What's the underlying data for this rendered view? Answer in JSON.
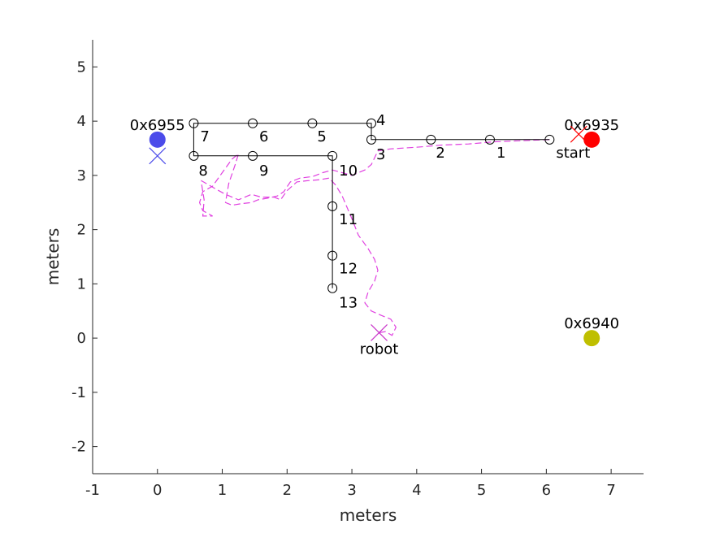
{
  "chart_data": {
    "type": "scatter",
    "xlabel": "meters",
    "ylabel": "meters",
    "xlim": [
      -1,
      7.5
    ],
    "ylim": [
      -2.5,
      5.5
    ],
    "xticks": [
      -1,
      0,
      1,
      2,
      3,
      4,
      5,
      6,
      7
    ],
    "yticks": [
      -2,
      -1,
      0,
      1,
      2,
      3,
      4,
      5
    ],
    "grid": false,
    "path": {
      "color": "#000000",
      "points": [
        [
          6.05,
          3.66
        ],
        [
          5.13,
          3.66
        ],
        [
          4.22,
          3.66
        ],
        [
          3.3,
          3.66
        ],
        [
          3.3,
          3.96
        ],
        [
          2.39,
          3.96
        ],
        [
          1.47,
          3.96
        ],
        [
          0.56,
          3.96
        ],
        [
          0.56,
          3.36
        ],
        [
          1.47,
          3.36
        ],
        [
          2.7,
          3.36
        ],
        [
          2.7,
          2.43
        ],
        [
          2.7,
          1.52
        ],
        [
          2.7,
          0.92
        ]
      ]
    },
    "waypoints": [
      {
        "label": "1",
        "x": 5.13,
        "y": 3.66
      },
      {
        "label": "2",
        "x": 4.22,
        "y": 3.66
      },
      {
        "label": "3",
        "x": 3.3,
        "y": 3.66
      },
      {
        "label": "4",
        "x": 3.3,
        "y": 3.96
      },
      {
        "label": "5",
        "x": 2.39,
        "y": 3.96
      },
      {
        "label": "6",
        "x": 1.47,
        "y": 3.96
      },
      {
        "label": "7",
        "x": 0.56,
        "y": 3.96
      },
      {
        "label": "8",
        "x": 0.56,
        "y": 3.36
      },
      {
        "label": "9",
        "x": 1.47,
        "y": 3.36
      },
      {
        "label": "10",
        "x": 2.7,
        "y": 3.36
      },
      {
        "label": "11",
        "x": 2.7,
        "y": 2.43
      },
      {
        "label": "12",
        "x": 2.7,
        "y": 1.52
      },
      {
        "label": "13",
        "x": 2.7,
        "y": 0.92
      }
    ],
    "start": {
      "label": "start",
      "x": 6.05,
      "y": 3.66
    },
    "anchors": [
      {
        "label": "0x6955",
        "x": 0.0,
        "y": 3.66,
        "color": "#4b4bea"
      },
      {
        "label": "0x6935",
        "x": 6.7,
        "y": 3.66,
        "color": "#ff0000"
      },
      {
        "label": "0x6940",
        "x": 6.7,
        "y": 0.0,
        "color": "#bfbf00"
      }
    ],
    "anchor_estimates": [
      {
        "x": 0.0,
        "y": 3.36,
        "color": "#4b4bea"
      },
      {
        "x": 6.5,
        "y": 3.76,
        "color": "#ff0000"
      }
    ],
    "robot": {
      "label": "robot",
      "x": 3.42,
      "y": 0.1,
      "color": "#c832c8"
    },
    "trajectory": {
      "color": "#e040e0",
      "points": [
        [
          6.05,
          3.66
        ],
        [
          5.6,
          3.64
        ],
        [
          5.2,
          3.62
        ],
        [
          4.8,
          3.58
        ],
        [
          4.4,
          3.56
        ],
        [
          4.0,
          3.52
        ],
        [
          3.6,
          3.49
        ],
        [
          3.4,
          3.45
        ],
        [
          3.3,
          3.2
        ],
        [
          3.2,
          3.1
        ],
        [
          3.0,
          3.0
        ],
        [
          2.85,
          3.05
        ],
        [
          2.7,
          3.1
        ],
        [
          2.55,
          3.05
        ],
        [
          2.4,
          2.98
        ],
        [
          2.2,
          2.95
        ],
        [
          2.05,
          2.88
        ],
        [
          1.95,
          2.7
        ],
        [
          1.85,
          2.62
        ],
        [
          1.7,
          2.58
        ],
        [
          1.55,
          2.55
        ],
        [
          1.45,
          2.5
        ],
        [
          1.3,
          2.48
        ],
        [
          1.15,
          2.45
        ],
        [
          1.05,
          2.5
        ],
        [
          1.1,
          2.85
        ],
        [
          1.2,
          3.2
        ],
        [
          1.25,
          3.4
        ],
        [
          1.15,
          3.3
        ],
        [
          1.0,
          3.05
        ],
        [
          0.85,
          2.8
        ],
        [
          0.7,
          2.7
        ],
        [
          0.65,
          2.5
        ],
        [
          0.7,
          2.35
        ],
        [
          0.85,
          2.25
        ],
        [
          0.7,
          2.25
        ],
        [
          0.72,
          2.55
        ],
        [
          0.68,
          2.85
        ],
        [
          0.68,
          2.9
        ],
        [
          0.9,
          2.75
        ],
        [
          1.05,
          2.65
        ],
        [
          1.25,
          2.55
        ],
        [
          1.45,
          2.65
        ],
        [
          1.6,
          2.6
        ],
        [
          1.8,
          2.6
        ],
        [
          1.9,
          2.55
        ],
        [
          2.0,
          2.72
        ],
        [
          2.15,
          2.88
        ],
        [
          2.3,
          2.9
        ],
        [
          2.5,
          2.92
        ],
        [
          2.65,
          2.95
        ],
        [
          2.75,
          2.82
        ],
        [
          2.85,
          2.62
        ],
        [
          3.0,
          2.2
        ],
        [
          3.1,
          1.9
        ],
        [
          3.25,
          1.65
        ],
        [
          3.35,
          1.45
        ],
        [
          3.4,
          1.25
        ],
        [
          3.35,
          1.05
        ],
        [
          3.25,
          0.85
        ],
        [
          3.2,
          0.65
        ],
        [
          3.3,
          0.5
        ],
        [
          3.45,
          0.42
        ],
        [
          3.6,
          0.35
        ],
        [
          3.68,
          0.2
        ],
        [
          3.62,
          0.05
        ],
        [
          3.52,
          0.12
        ],
        [
          3.42,
          0.1
        ]
      ]
    }
  }
}
